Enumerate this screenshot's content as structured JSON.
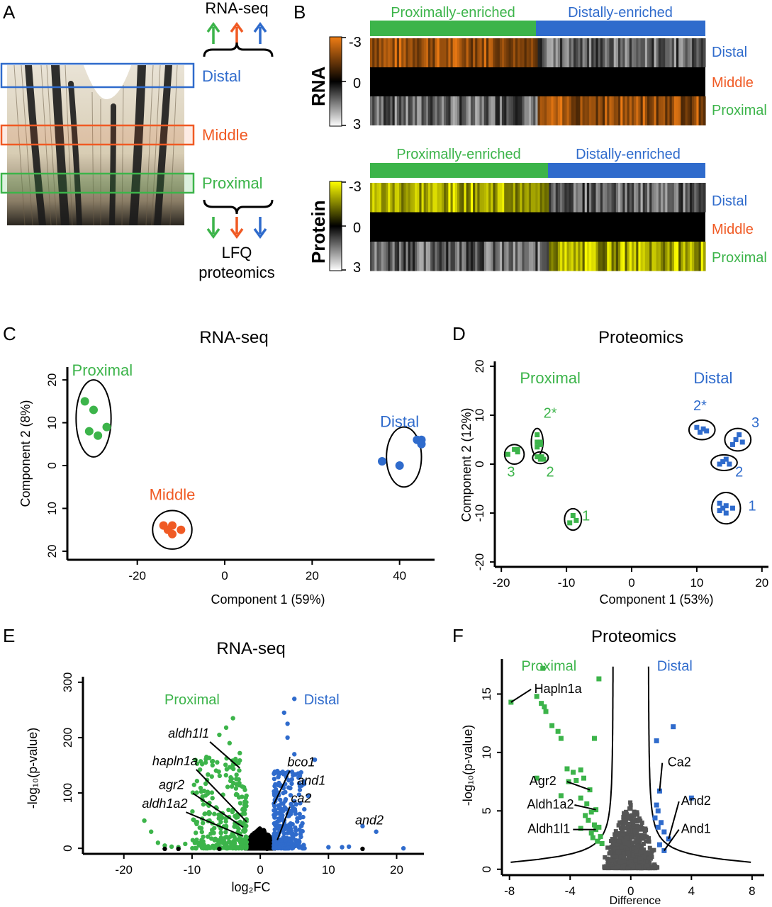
{
  "colors": {
    "proximal": "#3cb44a",
    "middle": "#f05a24",
    "distal": "#2f6bcc",
    "nonsig": "#555555",
    "black": "#000000",
    "rna_heat": "#f07d14",
    "protein_heat": "#ffff00"
  },
  "panel_labels": {
    "a": "A",
    "b": "B",
    "c": "C",
    "d": "D",
    "e": "E",
    "f": "F"
  },
  "panelA": {
    "top_label": "RNA-seq",
    "bottom_label_1": "LFQ",
    "bottom_label_2": "proteomics",
    "regions": [
      {
        "name": "Distal",
        "color": "distal"
      },
      {
        "name": "Middle",
        "color": "middle"
      },
      {
        "name": "Proximal",
        "color": "proximal"
      }
    ]
  },
  "panelB": {
    "rna": {
      "title": "RNA",
      "bar_left": "Proximally-enriched",
      "bar_right": "Distally-enriched",
      "scale_top": "-3",
      "scale_mid": "0",
      "scale_bottom": "3",
      "rows": [
        "Distal",
        "Middle",
        "Proximal"
      ]
    },
    "protein": {
      "title": "Protein",
      "bar_left": "Proximally-enriched",
      "bar_right": "Distally-enriched",
      "scale_top": "-3",
      "scale_mid": "0",
      "scale_bottom": "3",
      "rows": [
        "Distal",
        "Middle",
        "Proximal"
      ]
    }
  },
  "chart_data": [
    {
      "id": "C",
      "type": "scatter",
      "title": "RNA-seq",
      "xlabel": "Component 1 (59%)",
      "ylabel": "Component 2 (8%)",
      "xlim": [
        -36,
        48
      ],
      "ylim": [
        -22,
        23
      ],
      "xticks": [
        -20,
        0,
        20,
        40
      ],
      "yticks": [
        20,
        10,
        0,
        10,
        20
      ],
      "series": [
        {
          "name": "Proximal",
          "color": "proximal",
          "points": [
            [
              -32,
              15
            ],
            [
              -30,
              13
            ],
            [
              -31,
              8
            ],
            [
              -29,
              7
            ],
            [
              -27,
              9
            ]
          ],
          "label_xy": [
            -28,
            21
          ],
          "ellipse": [
            -30,
            11,
            4,
            9
          ]
        },
        {
          "name": "Middle",
          "color": "middle",
          "points": [
            [
              -14,
              -14
            ],
            [
              -13,
              -15
            ],
            [
              -12,
              -14
            ],
            [
              -12,
              -16
            ],
            [
              -10,
              -15
            ]
          ],
          "label_xy": [
            -12,
            -8
          ],
          "ellipse": [
            -12,
            -15,
            4.5,
            4.5
          ]
        },
        {
          "name": "Distal",
          "color": "distal",
          "points": [
            [
              44,
              6
            ],
            [
              45,
              6
            ],
            [
              45,
              5
            ],
            [
              36,
              1
            ],
            [
              40,
              0
            ]
          ],
          "label_xy": [
            40,
            9
          ],
          "ellipse": [
            41,
            2,
            4,
            7
          ]
        }
      ]
    },
    {
      "id": "D",
      "type": "scatter",
      "title": "Proteomics",
      "xlabel": "Component 1 (53%)",
      "ylabel": "Component 2 (12%)",
      "xlim": [
        -21,
        21
      ],
      "ylim": [
        -21,
        21
      ],
      "xticks": [
        -20,
        -10,
        0,
        10,
        20
      ],
      "yticks": [
        20,
        10,
        0,
        -10,
        -20
      ],
      "series": [
        {
          "name": "Proximal",
          "color": "proximal",
          "label_xy": [
            -12.5,
            16.5
          ],
          "clusters": [
            {
              "label": "3",
              "points": [
                [
                  -19,
                  2
                ],
                [
                  -18,
                  3
                ],
                [
                  -17.5,
                  2.5
                ],
                [
                  -17.5,
                  3
                ]
              ],
              "ellipse": [
                -18,
                2,
                1.5,
                2
              ],
              "label_xy": [
                -18.5,
                -2.5
              ]
            },
            {
              "label": "2*",
              "points": [
                [
                  -14.5,
                  6
                ],
                [
                  -14.5,
                  4.5
                ],
                [
                  -14,
                  4
                ],
                [
                  -14.5,
                  3.5
                ],
                [
                  -14,
                  4.5
                ]
              ],
              "ellipse": [
                -14.5,
                4.5,
                0.9,
                2.8
              ],
              "label_xy": [
                -12.5,
                9.5
              ]
            },
            {
              "label": "2",
              "points": [
                [
                  -14.5,
                  1.5
                ],
                [
                  -14,
                  1
                ],
                [
                  -13.5,
                  1
                ],
                [
                  -13.8,
                  1.5
                ]
              ],
              "ellipse": [
                -14,
                1.3,
                1.2,
                1.2
              ],
              "label_xy": [
                -12.5,
                -2.5
              ]
            },
            {
              "label": "1",
              "points": [
                [
                  -9.5,
                  -12
                ],
                [
                  -9,
                  -10.5
                ],
                [
                  -8.5,
                  -11.5
                ]
              ],
              "ellipse": [
                -9,
                -11.3,
                1.3,
                2.2
              ],
              "label_xy": [
                -7,
                -11.5
              ]
            }
          ]
        },
        {
          "name": "Distal",
          "color": "distal",
          "label_xy": [
            12.5,
            16.5
          ],
          "clusters": [
            {
              "label": "2*",
              "points": [
                [
                  10,
                  7.5
                ],
                [
                  10.5,
                  6.5
                ],
                [
                  11.5,
                  6.8
                ],
                [
                  11,
                  7.2
                ]
              ],
              "ellipse": [
                10.8,
                7,
                2,
                2
              ],
              "label_xy": [
                10.5,
                11
              ]
            },
            {
              "label": "3",
              "points": [
                [
                  15.5,
                  4
                ],
                [
                  16,
                  5
                ],
                [
                  16.5,
                  6
                ],
                [
                  17,
                  4.5
                ]
              ],
              "ellipse": [
                16.3,
                5,
                2,
                2.3
              ],
              "label_xy": [
                19,
                7.5
              ]
            },
            {
              "label": "2",
              "points": [
                [
                  13.5,
                  0
                ],
                [
                  14,
                  0.5
                ],
                [
                  14.5,
                  1
                ],
                [
                  15,
                  0
                ]
              ],
              "ellipse": [
                14.2,
                0.3,
                2,
                1.6
              ],
              "label_xy": [
                16.5,
                -2.5
              ]
            },
            {
              "label": "1",
              "points": [
                [
                  13.5,
                  -8
                ],
                [
                  14,
                  -9
                ],
                [
                  14.5,
                  -8.5
                ],
                [
                  14.5,
                  -10
                ],
                [
                  15.5,
                  -9
                ],
                [
                  13.5,
                  -9.5
                ]
              ],
              "ellipse": [
                14.5,
                -9,
                2.2,
                3.2
              ],
              "label_xy": [
                18.5,
                -9.5
              ]
            }
          ]
        }
      ]
    },
    {
      "id": "E",
      "type": "scatter",
      "title": "RNA-seq",
      "xlabel": "log₂FC",
      "ylabel": "-log₁₀(p-value)",
      "xlim": [
        -26,
        24
      ],
      "ylim": [
        -10,
        310
      ],
      "xticks": [
        -20,
        -10,
        0,
        10,
        20
      ],
      "yticks": [
        0,
        100,
        200,
        300
      ],
      "group_labels": [
        {
          "text": "Proximal",
          "color": "proximal",
          "xy": [
            -10,
            260
          ]
        },
        {
          "text": "Distal",
          "color": "distal",
          "xy": [
            9,
            260
          ]
        }
      ],
      "annotations": [
        {
          "text": "aldh1l1",
          "label_xy": [
            -10.5,
            200
          ],
          "target": [
            -3,
            145
          ]
        },
        {
          "text": "hapln1a",
          "label_xy": [
            -12.5,
            150
          ],
          "target": [
            -2,
            48
          ]
        },
        {
          "text": "agr2",
          "label_xy": [
            -13,
            107
          ],
          "target": [
            -2.5,
            38
          ]
        },
        {
          "text": "aldh1a2",
          "label_xy": [
            -14,
            73
          ],
          "target": [
            -2.5,
            22
          ]
        },
        {
          "text": "bco1",
          "label_xy": [
            6,
            148
          ],
          "target": [
            2,
            80
          ]
        },
        {
          "text": "and1",
          "label_xy": [
            7.5,
            115
          ],
          "target": null
        },
        {
          "text": "ca2",
          "label_xy": [
            6,
            83
          ],
          "target": [
            2.5,
            15
          ]
        },
        {
          "text": "and2",
          "label_xy": [
            16,
            43
          ],
          "target": null
        }
      ]
    },
    {
      "id": "F",
      "type": "scatter",
      "title": "Proteomics",
      "xlabel": "Difference",
      "ylabel": "-log₁₀(p-value)",
      "xlim": [
        -8.5,
        8.8
      ],
      "ylim": [
        -0.5,
        18
      ],
      "xticks": [
        -8,
        -4,
        0,
        4,
        8
      ],
      "yticks": [
        0,
        5,
        10,
        15
      ],
      "group_labels": [
        {
          "text": "Proximal",
          "color": "proximal",
          "xy": [
            -5.4,
            17
          ]
        },
        {
          "text": "Distal",
          "color": "distal",
          "xy": [
            2.9,
            17
          ]
        }
      ],
      "annotations": [
        {
          "text": "Hapln1a",
          "label_xy": [
            -4.8,
            15.1
          ],
          "target": [
            -7.9,
            14.3
          ]
        },
        {
          "text": "Agr2",
          "label_xy": [
            -5.8,
            7.2
          ],
          "target": [
            -2.7,
            6.8
          ]
        },
        {
          "text": "Aldh1a2",
          "label_xy": [
            -5.3,
            5.2
          ],
          "target": [
            -2.3,
            5.1
          ]
        },
        {
          "text": "Aldh1l1",
          "label_xy": [
            -5.4,
            3.1
          ],
          "target": [
            -2.3,
            3.4
          ]
        },
        {
          "text": "Ca2",
          "label_xy": [
            3.2,
            8.8
          ],
          "target": [
            1.9,
            6.7
          ]
        },
        {
          "text": "And2",
          "label_xy": [
            4.3,
            5.5
          ],
          "target": [
            2.5,
            2.6
          ]
        },
        {
          "text": "And1",
          "label_xy": [
            4.3,
            3.1
          ],
          "target": [
            2.2,
            1.6
          ]
        }
      ]
    }
  ]
}
